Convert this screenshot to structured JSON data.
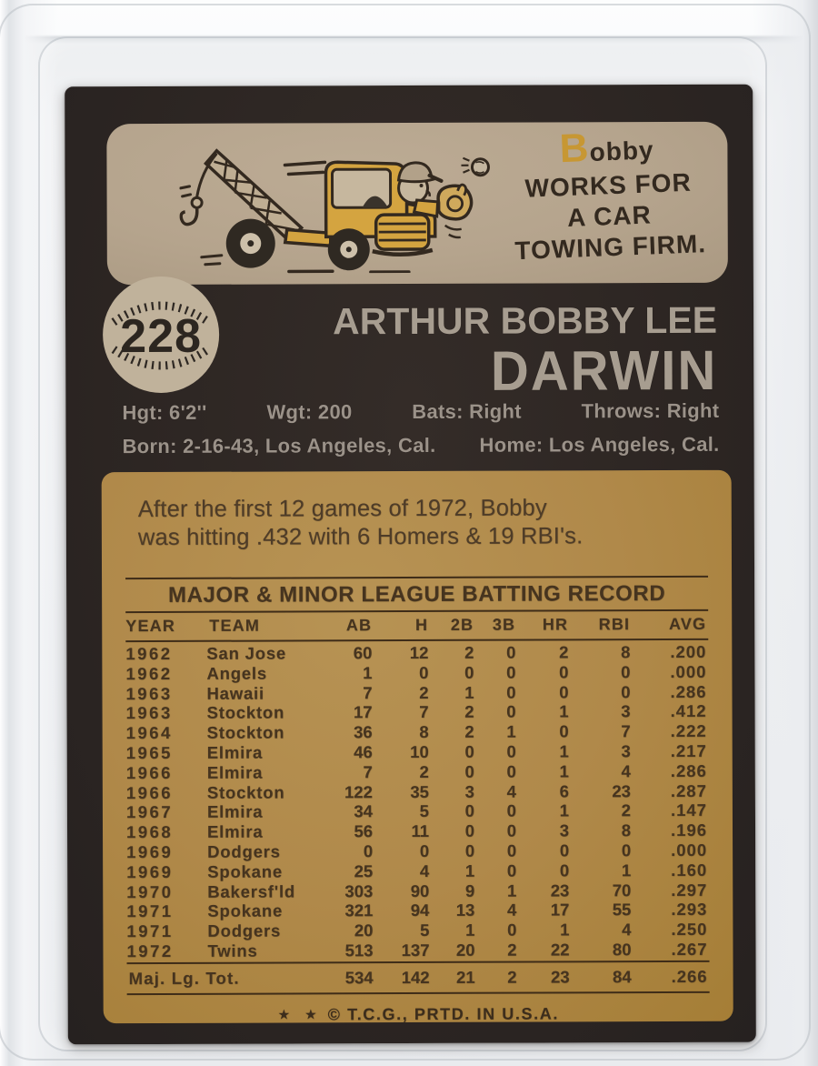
{
  "card": {
    "cartoon": {
      "caption": [
        "Bobby",
        "WORKS FOR",
        "A CAR",
        "TOWING FIRM."
      ]
    },
    "number": "228",
    "name": {
      "first_line": "ARTHUR BOBBY LEE",
      "last_line": "DARWIN"
    },
    "vitals": {
      "row1": [
        "Hgt: 6'2''",
        "Wgt: 200",
        "Bats: Right",
        "Throws: Right"
      ],
      "row2": [
        "Born: 2-16-43, Los Angeles, Cal.",
        "Home: Los Angeles, Cal."
      ]
    },
    "blurb": [
      "After the first 12 games of 1972, Bobby",
      "was hitting .432 with 6 Homers & 19 RBI's."
    ],
    "table": {
      "title": "MAJOR & MINOR LEAGUE BATTING RECORD",
      "columns": [
        "YEAR",
        "TEAM",
        "AB",
        "H",
        "2B",
        "3B",
        "HR",
        "RBI",
        "AVG"
      ],
      "rows": [
        [
          "1962",
          "San Jose",
          "60",
          "12",
          "2",
          "0",
          "2",
          "8",
          ".200"
        ],
        [
          "1962",
          "Angels",
          "1",
          "0",
          "0",
          "0",
          "0",
          "0",
          ".000"
        ],
        [
          "1963",
          "Hawaii",
          "7",
          "2",
          "1",
          "0",
          "0",
          "0",
          ".286"
        ],
        [
          "1963",
          "Stockton",
          "17",
          "7",
          "2",
          "0",
          "1",
          "3",
          ".412"
        ],
        [
          "1964",
          "Stockton",
          "36",
          "8",
          "2",
          "1",
          "0",
          "7",
          ".222"
        ],
        [
          "1965",
          "Elmira",
          "46",
          "10",
          "0",
          "0",
          "1",
          "3",
          ".217"
        ],
        [
          "1966",
          "Elmira",
          "7",
          "2",
          "0",
          "0",
          "1",
          "4",
          ".286"
        ],
        [
          "1966",
          "Stockton",
          "122",
          "35",
          "3",
          "4",
          "6",
          "23",
          ".287"
        ],
        [
          "1967",
          "Elmira",
          "34",
          "5",
          "0",
          "0",
          "1",
          "2",
          ".147"
        ],
        [
          "1968",
          "Elmira",
          "56",
          "11",
          "0",
          "0",
          "3",
          "8",
          ".196"
        ],
        [
          "1969",
          "Dodgers",
          "0",
          "0",
          "0",
          "0",
          "0",
          "0",
          ".000"
        ],
        [
          "1969",
          "Spokane",
          "25",
          "4",
          "1",
          "0",
          "0",
          "1",
          ".160"
        ],
        [
          "1970",
          "Bakersf'ld",
          "303",
          "90",
          "9",
          "1",
          "23",
          "70",
          ".297"
        ],
        [
          "1971",
          "Spokane",
          "321",
          "94",
          "13",
          "4",
          "17",
          "55",
          ".293"
        ],
        [
          "1971",
          "Dodgers",
          "20",
          "5",
          "1",
          "0",
          "1",
          "4",
          ".250"
        ],
        [
          "1972",
          "Twins",
          "513",
          "137",
          "20",
          "2",
          "22",
          "80",
          ".267"
        ]
      ],
      "total_row": {
        "label": "Maj. Lg. Tot.",
        "values": [
          "534",
          "142",
          "21",
          "2",
          "23",
          "84",
          ".266"
        ]
      }
    },
    "footer": {
      "stars": "★ ★",
      "text": "© T.C.G.,  PRTD. IN U.S.A."
    }
  },
  "colors": {
    "sleeve_gray": "#eceef1",
    "card_bg": "#2d2623",
    "panel_tan": "#b5a48d",
    "panel_gold": "#b0894a",
    "rule_ink": "#3e2c18",
    "table_ink": "#46341f",
    "name_ink": "#a79d90",
    "vitals_ink": "#9b9289",
    "blurb_ink": "#4e3c28",
    "truck_yellow": "#d4a440",
    "ball_cream": "#c0b29b",
    "cartoon_ink": "#33291f"
  }
}
